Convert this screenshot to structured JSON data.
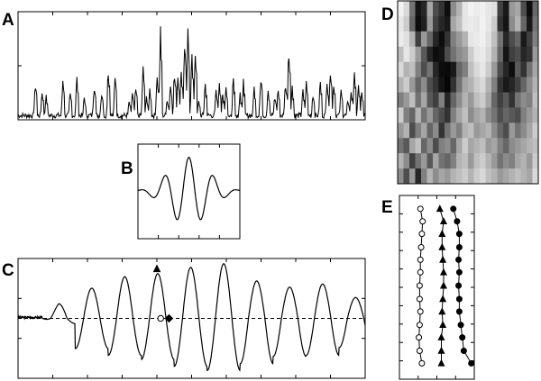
{
  "figure": {
    "panel_labels": {
      "a": "A",
      "b": "B",
      "c": "C",
      "d": "D",
      "e": "E"
    },
    "colors": {
      "line": "#000000",
      "background": "#ffffff",
      "open_marker": "#ffffff"
    }
  },
  "chart_data": [
    {
      "panel": "A",
      "type": "line",
      "title": "",
      "xlabel": "",
      "ylabel": "",
      "xlim": [
        0,
        1
      ],
      "ylim": [
        0,
        1
      ],
      "x_ticks": 10,
      "y_ticks": 2,
      "grid": false,
      "series": [
        {
          "name": "",
          "style": "spiky-activity",
          "events": [
            {
              "x": 0.05,
              "y": 0.38
            },
            {
              "x": 0.07,
              "y": 0.3
            },
            {
              "x": 0.08,
              "y": 0.25
            },
            {
              "x": 0.13,
              "y": 0.4
            },
            {
              "x": 0.15,
              "y": 0.3
            },
            {
              "x": 0.17,
              "y": 0.41
            },
            {
              "x": 0.19,
              "y": 0.22
            },
            {
              "x": 0.22,
              "y": 0.35
            },
            {
              "x": 0.24,
              "y": 0.28
            },
            {
              "x": 0.26,
              "y": 0.52
            },
            {
              "x": 0.28,
              "y": 0.45
            },
            {
              "x": 0.32,
              "y": 0.21
            },
            {
              "x": 0.33,
              "y": 0.27
            },
            {
              "x": 0.34,
              "y": 0.36
            },
            {
              "x": 0.36,
              "y": 0.52
            },
            {
              "x": 0.37,
              "y": 0.22
            },
            {
              "x": 0.38,
              "y": 0.3
            },
            {
              "x": 0.4,
              "y": 0.42
            },
            {
              "x": 0.41,
              "y": 0.9
            },
            {
              "x": 0.43,
              "y": 0.2
            },
            {
              "x": 0.44,
              "y": 0.33
            },
            {
              "x": 0.45,
              "y": 0.5
            },
            {
              "x": 0.46,
              "y": 0.44
            },
            {
              "x": 0.47,
              "y": 0.5
            },
            {
              "x": 0.48,
              "y": 0.8
            },
            {
              "x": 0.49,
              "y": 0.85
            },
            {
              "x": 0.5,
              "y": 0.62
            },
            {
              "x": 0.51,
              "y": 0.71
            },
            {
              "x": 0.52,
              "y": 0.2
            },
            {
              "x": 0.54,
              "y": 0.37
            },
            {
              "x": 0.57,
              "y": 0.28
            },
            {
              "x": 0.58,
              "y": 0.36
            },
            {
              "x": 0.59,
              "y": 0.28
            },
            {
              "x": 0.6,
              "y": 0.31
            },
            {
              "x": 0.62,
              "y": 0.42
            },
            {
              "x": 0.64,
              "y": 0.26
            },
            {
              "x": 0.65,
              "y": 0.39
            },
            {
              "x": 0.68,
              "y": 0.32
            },
            {
              "x": 0.7,
              "y": 0.45
            },
            {
              "x": 0.72,
              "y": 0.29
            },
            {
              "x": 0.74,
              "y": 0.24
            },
            {
              "x": 0.75,
              "y": 0.31
            },
            {
              "x": 0.77,
              "y": 0.38
            },
            {
              "x": 0.78,
              "y": 0.72
            },
            {
              "x": 0.79,
              "y": 0.32
            },
            {
              "x": 0.82,
              "y": 0.3
            },
            {
              "x": 0.83,
              "y": 0.38
            },
            {
              "x": 0.85,
              "y": 0.25
            },
            {
              "x": 0.87,
              "y": 0.4
            },
            {
              "x": 0.89,
              "y": 0.36
            },
            {
              "x": 0.9,
              "y": 0.52
            },
            {
              "x": 0.91,
              "y": 0.4
            },
            {
              "x": 0.93,
              "y": 0.3
            },
            {
              "x": 0.95,
              "y": 0.2
            },
            {
              "x": 0.96,
              "y": 0.32
            },
            {
              "x": 0.97,
              "y": 0.5
            },
            {
              "x": 0.98,
              "y": 0.36
            },
            {
              "x": 0.99,
              "y": 0.28
            }
          ]
        }
      ]
    },
    {
      "panel": "B",
      "type": "line",
      "title": "",
      "xlabel": "",
      "ylabel": "",
      "xlim": [
        -1,
        1
      ],
      "ylim": [
        -1,
        1
      ],
      "x_ticks": 5,
      "y_ticks": 0,
      "grid": false,
      "series": [
        {
          "name": "",
          "function": "gabor",
          "amplitude": 0.72,
          "sigma": 0.38,
          "frequency": 2.1,
          "baseline": 0.0
        }
      ]
    },
    {
      "panel": "C",
      "type": "line",
      "title": "",
      "xlabel": "",
      "ylabel": "",
      "xlim": [
        0,
        10
      ],
      "ylim": [
        -1.15,
        1.15
      ],
      "x_ticks": 10,
      "y_ticks": 3,
      "grid": false,
      "zero_line": "dashed",
      "series": [
        {
          "name": "",
          "function": "modulated-oscillation",
          "start": 0.7,
          "period": 0.95,
          "cycle_amplitudes": [
            0.1,
            0.58,
            0.71,
            0.79,
            0.92,
            1.0,
            0.87,
            0.73,
            0.71,
            0.56,
            0.48
          ],
          "trough_amplitudes": [
            0.28,
            0.58,
            0.8,
            0.86,
            0.98,
            1.05,
            0.72,
            0.6,
            0.66,
            0.4,
            0.37
          ]
        }
      ],
      "markers": [
        {
          "x": 4.11,
          "y": 0.0,
          "shape": "circle",
          "fill": "open"
        },
        {
          "x": 4.35,
          "y": 0.0,
          "shape": "diamond",
          "fill": "filled"
        },
        {
          "x": 4.0,
          "y": 0.95,
          "shape": "triangle",
          "fill": "filled"
        }
      ]
    },
    {
      "panel": "D",
      "type": "heatmap",
      "title": "",
      "xlabel": "",
      "ylabel": "",
      "colormap": "gray-reversed",
      "rows": 12,
      "cols": 24,
      "values": [
        [
          0.05,
          0.15,
          0.55,
          0.92,
          0.85,
          0.35,
          0.7,
          0.8,
          0.95,
          0.45,
          0.3,
          0.1,
          0.05,
          0.08,
          0.06,
          0.1,
          0.12,
          0.75,
          0.9,
          0.4,
          0.35,
          0.7,
          0.95,
          0.6
        ],
        [
          0.1,
          0.2,
          0.6,
          0.95,
          0.88,
          0.4,
          0.75,
          0.85,
          0.9,
          0.35,
          0.25,
          0.1,
          0.08,
          0.1,
          0.05,
          0.1,
          0.2,
          0.8,
          0.92,
          0.45,
          0.3,
          0.6,
          0.9,
          0.55
        ],
        [
          0.08,
          0.12,
          0.3,
          0.75,
          0.4,
          0.6,
          0.85,
          0.95,
          0.8,
          0.5,
          0.4,
          0.3,
          0.1,
          0.08,
          0.06,
          0.12,
          0.25,
          0.55,
          0.85,
          0.7,
          0.6,
          0.9,
          0.75,
          0.5
        ],
        [
          0.25,
          0.1,
          0.2,
          0.4,
          0.65,
          0.85,
          0.95,
          0.92,
          0.7,
          0.55,
          0.45,
          0.4,
          0.2,
          0.1,
          0.08,
          0.15,
          0.3,
          0.6,
          0.92,
          0.75,
          0.7,
          0.85,
          0.8,
          0.4
        ],
        [
          0.15,
          0.3,
          0.25,
          0.5,
          0.7,
          0.55,
          0.85,
          0.95,
          0.96,
          0.9,
          0.6,
          0.5,
          0.25,
          0.15,
          0.1,
          0.2,
          0.4,
          0.7,
          0.85,
          0.95,
          0.65,
          0.8,
          0.55,
          0.35
        ],
        [
          0.3,
          0.2,
          0.4,
          0.6,
          0.45,
          0.7,
          0.8,
          0.92,
          0.98,
          0.8,
          0.55,
          0.35,
          0.3,
          0.2,
          0.15,
          0.3,
          0.5,
          0.8,
          0.9,
          0.85,
          0.75,
          0.6,
          0.45,
          0.3
        ],
        [
          0.5,
          0.4,
          0.25,
          0.55,
          0.35,
          0.65,
          0.75,
          0.5,
          0.85,
          0.6,
          0.45,
          0.3,
          0.4,
          0.25,
          0.2,
          0.35,
          0.6,
          0.75,
          0.65,
          0.8,
          0.55,
          0.45,
          0.5,
          0.25
        ],
        [
          0.2,
          0.5,
          0.6,
          0.3,
          0.55,
          0.4,
          0.6,
          0.7,
          0.8,
          0.5,
          0.35,
          0.25,
          0.45,
          0.35,
          0.3,
          0.45,
          0.55,
          0.7,
          0.6,
          0.65,
          0.7,
          0.5,
          0.4,
          0.3
        ],
        [
          0.4,
          0.3,
          0.7,
          0.5,
          0.35,
          0.6,
          0.45,
          0.8,
          0.55,
          0.4,
          0.5,
          0.3,
          0.25,
          0.4,
          0.35,
          0.3,
          0.45,
          0.6,
          0.7,
          0.4,
          0.55,
          0.45,
          0.35,
          0.2
        ],
        [
          0.55,
          0.65,
          0.35,
          0.25,
          0.6,
          0.45,
          0.7,
          0.5,
          0.45,
          0.6,
          0.35,
          0.2,
          0.35,
          0.3,
          0.25,
          0.4,
          0.35,
          0.5,
          0.6,
          0.45,
          0.4,
          0.35,
          0.3,
          0.25
        ],
        [
          0.3,
          0.45,
          0.75,
          0.55,
          0.4,
          0.65,
          0.35,
          0.55,
          0.6,
          0.5,
          0.3,
          0.25,
          0.4,
          0.25,
          0.2,
          0.3,
          0.4,
          0.55,
          0.45,
          0.5,
          0.35,
          0.3,
          0.4,
          0.2
        ],
        [
          0.45,
          0.7,
          0.4,
          0.85,
          0.5,
          0.3,
          0.45,
          0.35,
          0.4,
          0.3,
          0.25,
          0.2,
          0.3,
          0.2,
          0.15,
          0.25,
          0.3,
          0.4,
          0.35,
          0.3,
          0.25,
          0.3,
          0.35,
          0.15
        ]
      ]
    },
    {
      "panel": "E",
      "type": "line",
      "title": "",
      "xlabel": "",
      "ylabel": "",
      "xlim": [
        0,
        1
      ],
      "ylim": [
        0,
        11
      ],
      "x_ticks": 4,
      "y_ticks": 10,
      "grid": false,
      "series": [
        {
          "name": "",
          "marker": "circle-open",
          "x": [
            0.28,
            0.31,
            0.3,
            0.29,
            0.28,
            0.28,
            0.27,
            0.27,
            0.28,
            0.27,
            0.26,
            0.27,
            0.3
          ],
          "y": [
            10.2,
            9.45,
            8.7,
            7.9,
            7.15,
            6.4,
            5.6,
            4.8,
            4.05,
            3.25,
            2.5,
            1.7,
            0.95
          ]
        },
        {
          "name": "",
          "marker": "triangle-filled",
          "x": [
            0.54,
            0.59,
            0.57,
            0.57,
            0.58,
            0.59,
            0.59,
            0.58,
            0.57,
            0.58,
            0.56,
            0.56,
            0.56
          ],
          "y": [
            10.2,
            9.45,
            8.7,
            7.9,
            7.15,
            6.4,
            5.6,
            4.8,
            4.05,
            3.25,
            2.5,
            1.7,
            0.95
          ]
        },
        {
          "name": "",
          "marker": "circle-filled",
          "x": [
            0.72,
            0.77,
            0.8,
            0.8,
            0.79,
            0.8,
            0.79,
            0.8,
            0.8,
            0.82,
            0.84,
            0.86,
            0.96
          ],
          "y": [
            10.2,
            9.45,
            8.7,
            7.9,
            7.15,
            6.4,
            5.6,
            4.8,
            4.05,
            3.25,
            2.5,
            1.7,
            0.95
          ]
        }
      ]
    }
  ]
}
